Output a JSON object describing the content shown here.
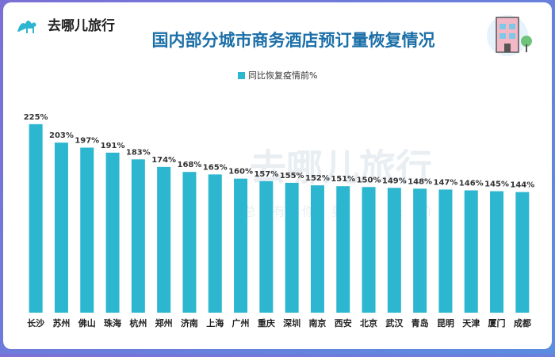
{
  "brand": "去哪儿旅行",
  "watermark": {
    "title": "去哪儿旅行",
    "slogan": "总 有 你 要 的 低 价"
  },
  "chart_data": {
    "type": "bar",
    "title": "国内部分城市商务酒店预订量恢复情况",
    "series_name": "同比恢复疫情前%",
    "categories": [
      "长沙",
      "苏州",
      "佛山",
      "珠海",
      "杭州",
      "郑州",
      "济南",
      "上海",
      "广州",
      "重庆",
      "深圳",
      "南京",
      "西安",
      "北京",
      "武汉",
      "青岛",
      "昆明",
      "天津",
      "厦门",
      "成都"
    ],
    "values": [
      225,
      203,
      197,
      191,
      183,
      174,
      168,
      165,
      160,
      157,
      155,
      152,
      151,
      150,
      149,
      148,
      147,
      146,
      145,
      144
    ],
    "value_labels": [
      "225%",
      "203%",
      "197%",
      "191%",
      "183%",
      "174%",
      "168%",
      "165%",
      "160%",
      "157%",
      "155%",
      "152%",
      "151%",
      "150%",
      "149%",
      "148%",
      "147%",
      "146%",
      "145%",
      "144%"
    ],
    "color": "#2db6cf",
    "ylim": [
      0,
      240
    ],
    "legend": "top"
  }
}
